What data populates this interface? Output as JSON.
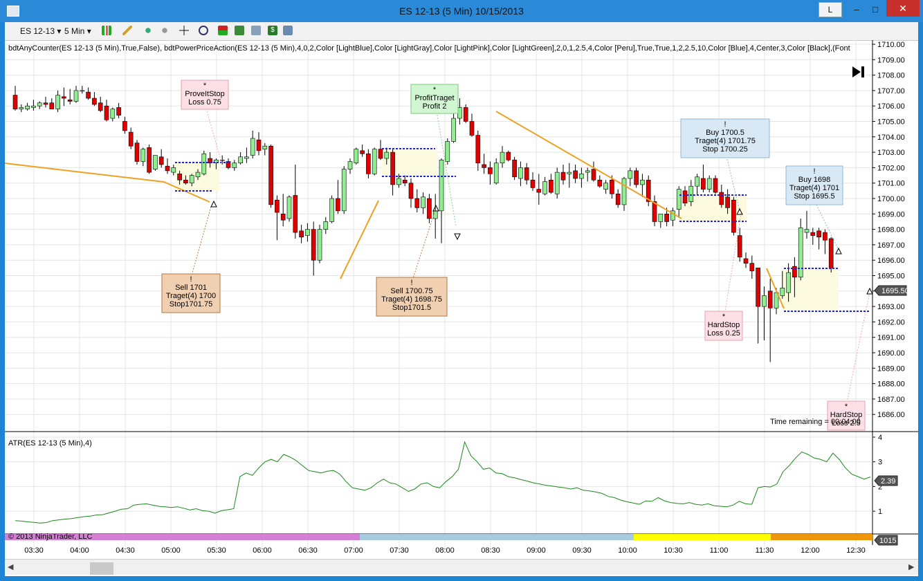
{
  "window": {
    "title": "ES 12-13 (5 Min)  10/15/2013",
    "l_button": "L",
    "minimize": "–",
    "maximize": "□",
    "close": "✕"
  },
  "toolbar": {
    "instrument": "ES 12-13",
    "interval": "5 Min"
  },
  "indicator_label": "bdtAnyCounter(ES 12-13 (5 Min),True,False), bdtPowerPriceAction(ES 12-13 (5 Min),4,0,2,Color [LightBlue],Color [LightGray],Color [LightPink],Color [LightGreen],2,0,1,2.5,4,Color [Peru],True,True,1,2,2.5,10,Color [Blue],4,Center,3,Color [Black],(Font",
  "annotations": {
    "prove_stop": [
      "*",
      "ProveItStop",
      "Loss 0.75"
    ],
    "profit_target": [
      "*",
      "ProfitTraget",
      "Profit 2"
    ],
    "buy_1700": [
      "!",
      "Buy 1700.5",
      "Traget(4) 1701.75",
      "Stop 1700.25"
    ],
    "buy_1698": [
      "!",
      "Buy 1698",
      "Traget(4) 1701",
      "Stop 1695.5"
    ],
    "sell_1701": [
      "!",
      "Sell 1701",
      "Traget(4) 1700",
      "Stop1701.75"
    ],
    "sell_1700": [
      "!",
      "Sell 1700.75",
      "Traget(4) 1698.75",
      "Stop1701.5"
    ],
    "hardstop_1": [
      "*",
      "HardStop",
      "Loss 0.25"
    ],
    "hardstop_2": [
      "*",
      "HardStop",
      "Loss 2.5"
    ]
  },
  "time_remaining": "Time remaining = 00:04:00",
  "atr_label": "ATR(ES 12-13 (5 Min),4)",
  "copyright": "© 2013 NinjaTrader, LLC",
  "price_badge": "1695.50",
  "atr_badge": "2.39",
  "counter_badge": "1015",
  "colors": {
    "up": "#90ee90",
    "down": "#e00000",
    "trend": "#f0a020",
    "level": "#2020e0",
    "seg": [
      "#d47fd4",
      "#a8cbe0",
      "#ffff00",
      "#f0960a"
    ]
  },
  "chart_data": [
    {
      "type": "candlestick",
      "y_ticks": [
        "1710.00",
        "1709.00",
        "1708.00",
        "1707.00",
        "1706.00",
        "1705.00",
        "1704.00",
        "1703.00",
        "1702.00",
        "1701.00",
        "1700.00",
        "1699.00",
        "1698.00",
        "1697.00",
        "1696.00",
        "1695.00",
        "1694.00",
        "1693.00",
        "1692.00",
        "1691.00",
        "1690.00",
        "1689.00",
        "1688.00",
        "1687.00",
        "1686.00"
      ],
      "ylim": [
        1685.5,
        1710.2
      ],
      "x_ticks": [
        "03:30",
        "04:00",
        "04:30",
        "05:00",
        "05:30",
        "06:00",
        "06:30",
        "07:00",
        "07:30",
        "08:00",
        "08:30",
        "09:00",
        "09:30",
        "10:00",
        "10:30",
        "11:00",
        "11:30",
        "12:00",
        "12:30"
      ],
      "ohlc": [
        [
          1706.7,
          1707.3,
          1705.7,
          1705.8
        ],
        [
          1705.8,
          1706.1,
          1705.6,
          1705.9
        ],
        [
          1705.8,
          1706.2,
          1705.7,
          1706.0
        ],
        [
          1705.9,
          1706.4,
          1705.7,
          1706.0
        ],
        [
          1706.0,
          1706.3,
          1705.8,
          1706.2
        ],
        [
          1706.2,
          1706.6,
          1705.9,
          1706.1
        ],
        [
          1706.2,
          1706.5,
          1705.8,
          1705.8
        ],
        [
          1705.8,
          1707.0,
          1705.6,
          1706.7
        ],
        [
          1706.6,
          1707.2,
          1706.0,
          1706.5
        ],
        [
          1706.4,
          1707.1,
          1706.1,
          1706.3
        ],
        [
          1706.3,
          1707.3,
          1706.2,
          1707.0
        ],
        [
          1707.0,
          1707.3,
          1706.8,
          1707.0
        ],
        [
          1706.9,
          1707.2,
          1706.4,
          1706.5
        ],
        [
          1706.5,
          1706.9,
          1706.0,
          1706.1
        ],
        [
          1706.2,
          1706.6,
          1705.6,
          1705.7
        ],
        [
          1706.0,
          1706.4,
          1705.0,
          1705.1
        ],
        [
          1705.2,
          1705.9,
          1705.0,
          1705.8
        ],
        [
          1705.9,
          1706.2,
          1705.2,
          1705.4
        ],
        [
          1705.0,
          1705.3,
          1704.2,
          1704.4
        ],
        [
          1704.3,
          1704.6,
          1703.2,
          1703.4
        ],
        [
          1703.6,
          1703.8,
          1702.2,
          1702.4
        ],
        [
          1702.4,
          1703.3,
          1702.1,
          1703.2
        ],
        [
          1703.3,
          1703.5,
          1701.6,
          1701.7
        ],
        [
          1701.9,
          1702.8,
          1701.8,
          1702.8
        ],
        [
          1702.7,
          1703.2,
          1702.0,
          1702.2
        ],
        [
          1702.1,
          1702.6,
          1701.6,
          1701.8
        ],
        [
          1701.7,
          1702.2,
          1701.5,
          1702.0
        ],
        [
          1701.6,
          1701.8,
          1700.9,
          1701.2
        ],
        [
          1701.2,
          1701.5,
          1700.9,
          1701.0
        ],
        [
          1701.0,
          1701.6,
          1700.8,
          1701.5
        ],
        [
          1701.4,
          1701.9,
          1701.2,
          1701.7
        ],
        [
          1701.6,
          1703.1,
          1701.5,
          1702.9
        ],
        [
          1702.6,
          1703.0,
          1702.0,
          1702.3
        ],
        [
          1702.3,
          1702.6,
          1701.9,
          1702.5
        ],
        [
          1702.5,
          1702.8,
          1702.2,
          1702.5
        ],
        [
          1702.4,
          1702.6,
          1701.9,
          1702.0
        ],
        [
          1702.0,
          1702.5,
          1701.8,
          1702.3
        ],
        [
          1702.3,
          1703.0,
          1702.2,
          1702.7
        ],
        [
          1702.6,
          1703.3,
          1702.3,
          1702.7
        ],
        [
          1702.8,
          1704.4,
          1702.6,
          1703.9
        ],
        [
          1703.8,
          1704.3,
          1702.8,
          1703.1
        ],
        [
          1703.2,
          1703.6,
          1702.8,
          1703.4
        ],
        [
          1703.4,
          1703.5,
          1699.4,
          1699.6
        ],
        [
          1699.9,
          1700.2,
          1697.3,
          1699.1
        ],
        [
          1699.0,
          1700.3,
          1698.2,
          1698.6
        ],
        [
          1698.7,
          1700.2,
          1698.5,
          1700.1
        ],
        [
          1700.2,
          1702.2,
          1697.4,
          1697.8
        ],
        [
          1697.9,
          1698.3,
          1697.1,
          1697.5
        ],
        [
          1697.6,
          1698.4,
          1697.2,
          1698.0
        ],
        [
          1698.0,
          1698.5,
          1695.0,
          1696.0
        ],
        [
          1696.0,
          1698.3,
          1695.8,
          1698.0
        ],
        [
          1698.0,
          1698.8,
          1697.7,
          1698.5
        ],
        [
          1698.5,
          1700.2,
          1698.4,
          1700.0
        ],
        [
          1700.0,
          1701.2,
          1699.0,
          1699.2
        ],
        [
          1699.2,
          1702.1,
          1699.0,
          1701.9
        ],
        [
          1701.9,
          1702.6,
          1701.6,
          1702.4
        ],
        [
          1702.3,
          1703.3,
          1702.2,
          1703.2
        ],
        [
          1703.1,
          1703.5,
          1702.7,
          1702.9
        ],
        [
          1702.9,
          1703.2,
          1701.3,
          1701.6
        ],
        [
          1701.6,
          1703.3,
          1701.5,
          1703.2
        ],
        [
          1703.2,
          1703.8,
          1702.5,
          1702.6
        ],
        [
          1702.6,
          1703.3,
          1702.2,
          1703.0
        ],
        [
          1703.0,
          1703.2,
          1700.2,
          1700.9
        ],
        [
          1700.9,
          1701.6,
          1700.7,
          1701.3
        ],
        [
          1701.2,
          1701.5,
          1700.8,
          1701.0
        ],
        [
          1701.0,
          1701.3,
          1699.4,
          1700.0
        ],
        [
          1700.0,
          1700.6,
          1699.1,
          1699.4
        ],
        [
          1699.4,
          1700.4,
          1699.0,
          1700.1
        ],
        [
          1700.0,
          1700.3,
          1698.4,
          1698.7
        ],
        [
          1698.7,
          1700.3,
          1697.4,
          1699.2
        ],
        [
          1699.2,
          1702.6,
          1697.1,
          1702.5
        ],
        [
          1702.4,
          1703.9,
          1702.2,
          1703.7
        ],
        [
          1703.7,
          1705.6,
          1703.6,
          1705.2
        ],
        [
          1705.2,
          1706.5,
          1704.8,
          1705.9
        ],
        [
          1705.9,
          1706.1,
          1704.9,
          1705.0
        ],
        [
          1705.0,
          1705.5,
          1704.0,
          1704.1
        ],
        [
          1704.1,
          1704.4,
          1701.8,
          1702.3
        ],
        [
          1702.2,
          1702.9,
          1701.6,
          1702.0
        ],
        [
          1702.0,
          1702.4,
          1700.9,
          1701.6
        ],
        [
          1701.0,
          1702.6,
          1700.9,
          1702.3
        ],
        [
          1702.3,
          1703.4,
          1702.0,
          1703.0
        ],
        [
          1703.0,
          1703.1,
          1702.4,
          1702.5
        ],
        [
          1702.5,
          1702.7,
          1701.2,
          1701.4
        ],
        [
          1701.3,
          1702.4,
          1700.8,
          1702.0
        ],
        [
          1702.0,
          1702.3,
          1700.9,
          1701.2
        ],
        [
          1701.2,
          1701.7,
          1700.5,
          1700.7
        ],
        [
          1700.6,
          1701.6,
          1699.6,
          1700.4
        ],
        [
          1700.3,
          1701.4,
          1700.2,
          1701.1
        ],
        [
          1701.2,
          1701.6,
          1700.3,
          1700.4
        ],
        [
          1700.3,
          1702.0,
          1700.0,
          1701.7
        ],
        [
          1701.7,
          1702.2,
          1700.9,
          1701.2
        ],
        [
          1701.6,
          1702.3,
          1700.7,
          1701.7
        ],
        [
          1701.8,
          1702.2,
          1701.0,
          1701.3
        ],
        [
          1701.3,
          1702.0,
          1700.7,
          1701.6
        ],
        [
          1701.7,
          1702.0,
          1701.1,
          1701.8
        ],
        [
          1701.9,
          1702.4,
          1701.1,
          1701.2
        ],
        [
          1701.2,
          1701.5,
          1700.7,
          1700.8
        ],
        [
          1700.6,
          1701.2,
          1700.3,
          1701.0
        ],
        [
          1701.2,
          1701.5,
          1700.0,
          1700.3
        ],
        [
          1700.3,
          1700.6,
          1699.4,
          1699.6
        ],
        [
          1699.6,
          1701.4,
          1699.2,
          1701.3
        ],
        [
          1701.3,
          1702.0,
          1700.8,
          1701.8
        ],
        [
          1701.8,
          1702.0,
          1700.7,
          1700.9
        ],
        [
          1700.9,
          1701.6,
          1700.1,
          1701.2
        ],
        [
          1701.2,
          1701.5,
          1699.5,
          1699.8
        ],
        [
          1699.8,
          1700.2,
          1698.2,
          1698.5
        ],
        [
          1698.5,
          1699.0,
          1698.1,
          1699.0
        ],
        [
          1699.0,
          1699.4,
          1698.2,
          1698.5
        ],
        [
          1698.6,
          1699.4,
          1698.2,
          1699.2
        ],
        [
          1699.3,
          1700.8,
          1698.8,
          1700.6
        ],
        [
          1700.5,
          1700.8,
          1699.5,
          1699.7
        ],
        [
          1699.8,
          1701.2,
          1699.5,
          1700.8
        ],
        [
          1700.8,
          1701.6,
          1700.2,
          1701.4
        ],
        [
          1701.3,
          1702.2,
          1700.4,
          1700.6
        ],
        [
          1700.6,
          1701.5,
          1700.4,
          1701.3
        ],
        [
          1701.3,
          1701.5,
          1700.3,
          1700.4
        ],
        [
          1700.4,
          1700.9,
          1699.4,
          1699.6
        ],
        [
          1700.1,
          1700.6,
          1699.0,
          1699.4
        ],
        [
          1699.9,
          1700.1,
          1697.6,
          1697.8
        ],
        [
          1697.6,
          1698.1,
          1695.9,
          1696.2
        ],
        [
          1696.1,
          1696.5,
          1695.5,
          1695.8
        ],
        [
          1695.8,
          1696.3,
          1694.8,
          1695.3
        ],
        [
          1695.5,
          1695.5,
          1690.6,
          1693.0
        ],
        [
          1693.0,
          1694.3,
          1690.8,
          1693.7
        ],
        [
          1694.0,
          1694.8,
          1689.4,
          1692.9
        ],
        [
          1692.9,
          1694.2,
          1692.5,
          1693.9
        ],
        [
          1693.7,
          1695.3,
          1693.5,
          1694.2
        ],
        [
          1693.9,
          1695.8,
          1693.3,
          1695.2
        ],
        [
          1695.6,
          1696.2,
          1693.6,
          1694.9
        ],
        [
          1694.9,
          1698.7,
          1694.7,
          1698.1
        ],
        [
          1697.8,
          1699.2,
          1697.4,
          1698.0
        ],
        [
          1697.8,
          1698.1,
          1697.0,
          1697.6
        ],
        [
          1697.9,
          1698.1,
          1696.7,
          1697.5
        ],
        [
          1697.8,
          1698.0,
          1696.4,
          1697.3
        ],
        [
          1697.4,
          1697.5,
          1695.2,
          1695.5
        ]
      ]
    },
    {
      "type": "line",
      "name": "ATR(ES 12-13 (5 Min),4)",
      "y_ticks": [
        "4",
        "3",
        "2",
        "1"
      ],
      "ylim": [
        0.5,
        4.0
      ],
      "values": [
        0.62,
        0.6,
        0.57,
        0.55,
        0.52,
        0.54,
        0.62,
        0.65,
        0.68,
        0.7,
        0.74,
        0.78,
        0.8,
        0.85,
        0.86,
        0.93,
        1.0,
        1.08,
        1.1,
        1.25,
        1.28,
        1.3,
        1.25,
        1.2,
        1.18,
        1.15,
        1.18,
        1.12,
        1.05,
        1.1,
        1.02,
        1.0,
        0.92,
        1.02,
        1.06,
        1.1,
        2.4,
        2.55,
        2.45,
        2.75,
        3.0,
        3.1,
        3.0,
        3.3,
        3.2,
        3.05,
        2.85,
        2.65,
        2.6,
        2.55,
        2.62,
        2.65,
        2.5,
        2.2,
        1.95,
        1.9,
        1.85,
        1.95,
        2.15,
        2.3,
        2.15,
        2.1,
        1.95,
        1.8,
        1.9,
        2.1,
        2.15,
        2.0,
        1.95,
        2.2,
        2.4,
        2.7,
        3.8,
        3.25,
        3.0,
        2.7,
        2.75,
        2.55,
        2.52,
        2.4,
        2.35,
        2.28,
        2.22,
        2.15,
        2.1,
        2.05,
        2.02,
        1.98,
        1.95,
        1.9,
        1.95,
        1.85,
        1.82,
        1.78,
        1.72,
        1.6,
        1.55,
        1.45,
        1.38,
        1.33,
        1.28,
        1.42,
        1.4,
        1.55,
        1.42,
        1.35,
        1.32,
        1.3,
        1.35,
        1.28,
        1.25,
        1.3,
        1.22,
        1.2,
        1.18,
        1.25,
        1.4,
        1.3,
        1.28,
        1.95,
        2.0,
        1.98,
        2.1,
        2.6,
        2.85,
        3.15,
        3.4,
        3.3,
        3.15,
        3.1,
        3.0,
        3.35,
        3.1,
        2.75,
        2.5,
        2.4,
        2.3,
        2.39
      ]
    }
  ]
}
